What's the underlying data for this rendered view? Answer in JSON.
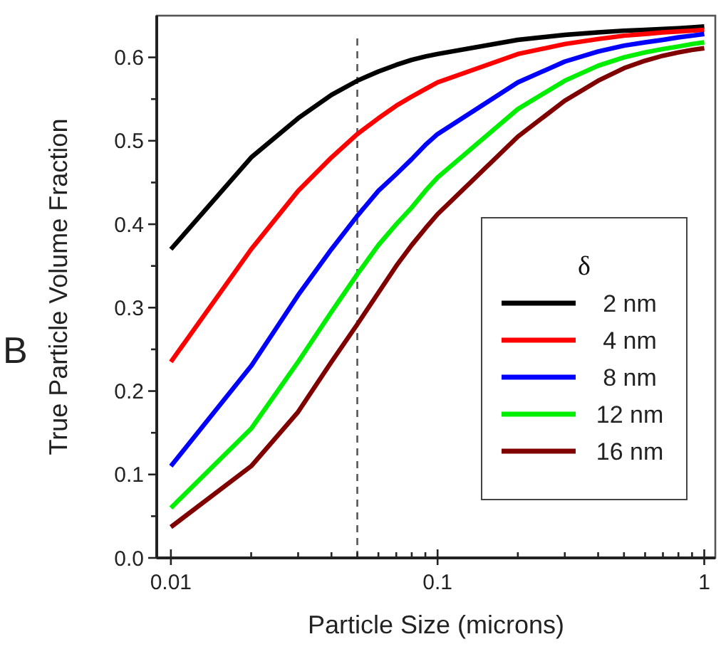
{
  "chart_data": {
    "type": "line",
    "xlabel": "Particle Size (microns)",
    "ylabel": "True Particle Volume Fraction",
    "legend_title": "δ",
    "annotations": [
      "B"
    ],
    "log": "x",
    "xlim": [
      0.00885,
      1.1
    ],
    "ylim": [
      0,
      0.65
    ],
    "xticks": [
      {
        "value": 0.01,
        "label": "0.01"
      },
      {
        "value": 0.02,
        "label": null
      },
      {
        "value": 0.03,
        "label": null
      },
      {
        "value": 0.04,
        "label": null
      },
      {
        "value": 0.05,
        "label": null
      },
      {
        "value": 0.06,
        "label": null
      },
      {
        "value": 0.07,
        "label": null
      },
      {
        "value": 0.08,
        "label": null
      },
      {
        "value": 0.09,
        "label": null
      },
      {
        "value": 0.1,
        "label": "0.1"
      },
      {
        "value": 0.2,
        "label": null
      },
      {
        "value": 0.3,
        "label": null
      },
      {
        "value": 0.4,
        "label": null
      },
      {
        "value": 0.5,
        "label": null
      },
      {
        "value": 0.6,
        "label": null
      },
      {
        "value": 0.7,
        "label": null
      },
      {
        "value": 0.8,
        "label": null
      },
      {
        "value": 0.9,
        "label": null
      },
      {
        "value": 1,
        "label": "1"
      }
    ],
    "yticks": [
      {
        "value": 0,
        "label": "0.0"
      },
      {
        "value": 0.05,
        "label": null
      },
      {
        "value": 0.1,
        "label": "0.1"
      },
      {
        "value": 0.15,
        "label": null
      },
      {
        "value": 0.2,
        "label": "0.2"
      },
      {
        "value": 0.25,
        "label": null
      },
      {
        "value": 0.3,
        "label": "0.3"
      },
      {
        "value": 0.35,
        "label": null
      },
      {
        "value": 0.4,
        "label": "0.4"
      },
      {
        "value": 0.45,
        "label": null
      },
      {
        "value": 0.5,
        "label": "0.5"
      },
      {
        "value": 0.55,
        "label": null
      },
      {
        "value": 0.6,
        "label": "0.6"
      }
    ],
    "x": [
      0.01,
      0.02,
      0.03,
      0.04,
      0.05,
      0.06,
      0.07,
      0.08,
      0.09,
      0.1,
      0.2,
      0.3,
      0.4,
      0.5,
      0.6,
      0.7,
      0.8,
      0.9,
      1
    ],
    "ref_lines": [
      {
        "axis": "x",
        "value": 0.05,
        "line_style": "dashed",
        "color": "#555555"
      }
    ],
    "legend": "bottom right",
    "grid": false,
    "marker": "none",
    "line_style": "solid",
    "series": [
      {
        "name": "2 nm",
        "color": "#000000",
        "values": [
          0.37,
          0.48,
          0.527,
          0.555,
          0.572,
          0.583,
          0.591,
          0.597,
          0.601,
          0.604,
          0.621,
          0.627,
          0.63,
          0.632,
          0.633,
          0.634,
          0.635,
          0.636,
          0.637
        ]
      },
      {
        "name": "4 nm",
        "color": "#ff0000",
        "values": [
          0.235,
          0.37,
          0.44,
          0.48,
          0.508,
          0.527,
          0.542,
          0.553,
          0.562,
          0.57,
          0.604,
          0.616,
          0.622,
          0.626,
          0.628,
          0.63,
          0.631,
          0.632,
          0.633
        ]
      },
      {
        "name": "8 nm",
        "color": "#0000ff",
        "values": [
          0.11,
          0.23,
          0.315,
          0.37,
          0.41,
          0.44,
          0.46,
          0.478,
          0.495,
          0.508,
          0.57,
          0.595,
          0.607,
          0.614,
          0.618,
          0.621,
          0.624,
          0.626,
          0.628
        ]
      },
      {
        "name": "12 nm",
        "color": "#00ee00",
        "values": [
          0.06,
          0.155,
          0.235,
          0.295,
          0.34,
          0.375,
          0.4,
          0.42,
          0.44,
          0.456,
          0.538,
          0.572,
          0.59,
          0.6,
          0.606,
          0.61,
          0.613,
          0.616,
          0.618
        ]
      },
      {
        "name": "16 nm",
        "color": "#800000",
        "values": [
          0.037,
          0.11,
          0.175,
          0.235,
          0.28,
          0.318,
          0.35,
          0.375,
          0.395,
          0.412,
          0.505,
          0.548,
          0.572,
          0.587,
          0.596,
          0.602,
          0.606,
          0.609,
          0.611
        ]
      }
    ]
  }
}
